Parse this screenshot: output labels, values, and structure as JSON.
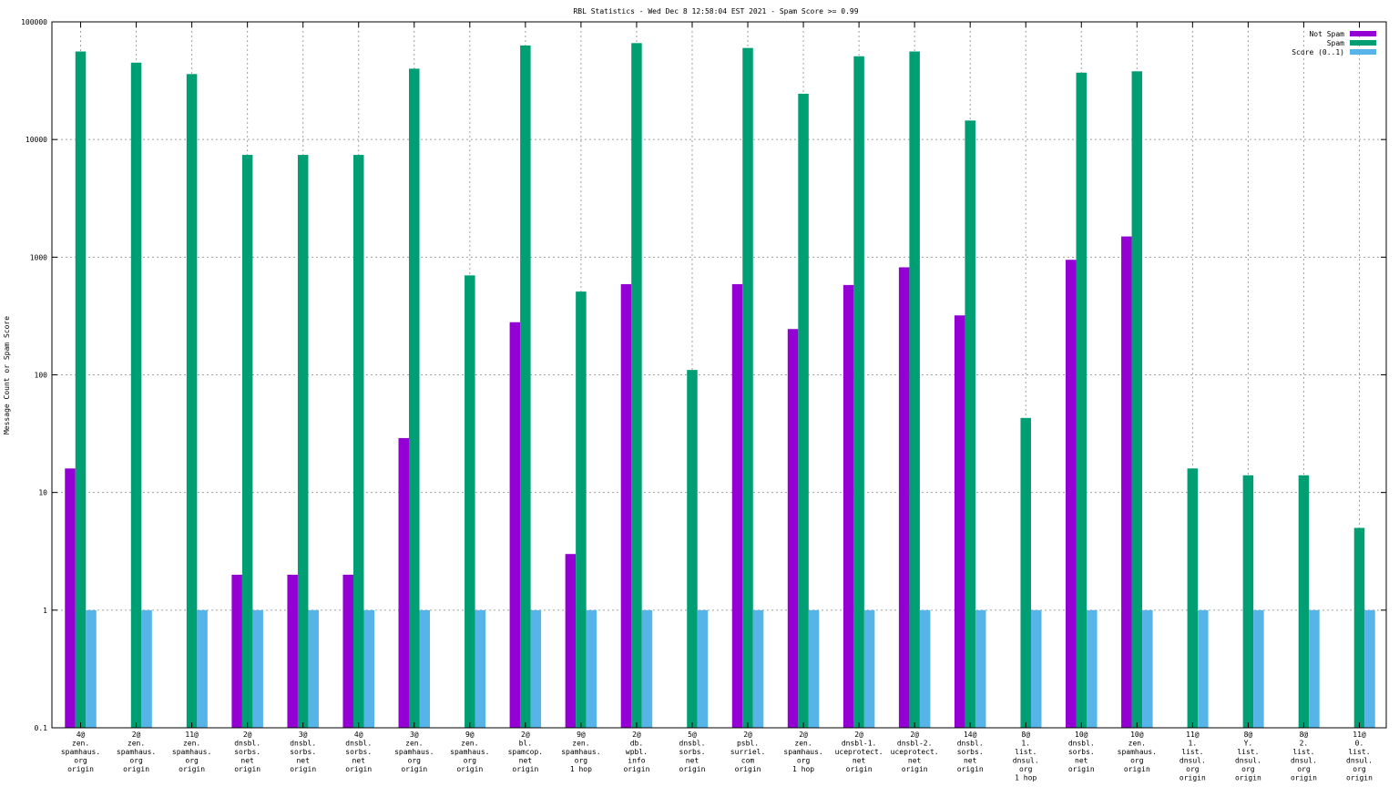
{
  "chart_data": {
    "type": "bar",
    "title": "RBL Statistics - Wed Dec  8 12:58:04 EST 2021 - Spam Score >= 0.99",
    "ylabel": "Message Count or Spam Score",
    "xlabel": "",
    "yscale": "log",
    "ylim": [
      0.1,
      100000
    ],
    "yticks": [
      "0.1",
      "1",
      "10",
      "100",
      "1000",
      "10000",
      "100000"
    ],
    "grid": true,
    "legend_position": "top-right",
    "categories": [
      [
        "4@",
        "zen.",
        "spamhaus.",
        "org",
        "origin"
      ],
      [
        "2@",
        "zen.",
        "spamhaus.",
        "org",
        "origin"
      ],
      [
        "11@",
        "zen.",
        "spamhaus.",
        "org",
        "origin"
      ],
      [
        "2@",
        "dnsbl.",
        "sorbs.",
        "net",
        "origin"
      ],
      [
        "3@",
        "dnsbl.",
        "sorbs.",
        "net",
        "origin"
      ],
      [
        "4@",
        "dnsbl.",
        "sorbs.",
        "net",
        "origin"
      ],
      [
        "3@",
        "zen.",
        "spamhaus.",
        "org",
        "origin"
      ],
      [
        "9@",
        "zen.",
        "spamhaus.",
        "org",
        "origin"
      ],
      [
        "2@",
        "bl.",
        "spamcop.",
        "net",
        "origin"
      ],
      [
        "9@",
        "zen.",
        "spamhaus.",
        "org",
        "1 hop"
      ],
      [
        "2@",
        "db.",
        "wpbl.",
        "info",
        "origin"
      ],
      [
        "5@",
        "dnsbl.",
        "sorbs.",
        "net",
        "origin"
      ],
      [
        "2@",
        "psbl.",
        "surriel.",
        "com",
        "origin"
      ],
      [
        "2@",
        "zen.",
        "spamhaus.",
        "org",
        "1 hop"
      ],
      [
        "2@",
        "dnsbl-1.",
        "uceprotect.",
        "net",
        "origin"
      ],
      [
        "2@",
        "dnsbl-2.",
        "uceprotect.",
        "net",
        "origin"
      ],
      [
        "14@",
        "dnsbl.",
        "sorbs.",
        "net",
        "origin"
      ],
      [
        "8@",
        "1.",
        "list.",
        "dnsul.",
        "org",
        "1 hop"
      ],
      [
        "10@",
        "dnsbl.",
        "sorbs.",
        "net",
        "origin"
      ],
      [
        "10@",
        "zen.",
        "spamhaus.",
        "org",
        "origin"
      ],
      [
        "11@",
        "1.",
        "list.",
        "dnsul.",
        "org",
        "origin"
      ],
      [
        "8@",
        "Y.",
        "list.",
        "dnsul.",
        "org",
        "origin"
      ],
      [
        "8@",
        "2.",
        "list.",
        "dnsul.",
        "org",
        "origin"
      ],
      [
        "11@",
        "0.",
        "list.",
        "dnsul.",
        "org",
        "origin"
      ]
    ],
    "series": [
      {
        "name": "Not Spam",
        "color": "#9400d3",
        "values": [
          16,
          null,
          null,
          2,
          2,
          2,
          29,
          null,
          280,
          3,
          590,
          null,
          590,
          245,
          580,
          820,
          320,
          null,
          950,
          1500,
          null,
          null,
          null,
          null
        ]
      },
      {
        "name": "Spam",
        "color": "#009e73",
        "values": [
          56000,
          45000,
          36000,
          7400,
          7400,
          7400,
          40000,
          700,
          63000,
          510,
          66000,
          110,
          60000,
          24500,
          51000,
          56000,
          14500,
          43,
          37000,
          38000,
          16,
          14,
          14,
          5
        ]
      },
      {
        "name": "Score (0..1)",
        "color": "#56b4e9",
        "values": [
          1,
          1,
          1,
          1,
          1,
          1,
          1,
          1,
          1,
          1,
          1,
          1,
          1,
          1,
          1,
          1,
          1,
          1,
          1,
          1,
          1,
          1,
          1,
          1
        ]
      }
    ]
  }
}
